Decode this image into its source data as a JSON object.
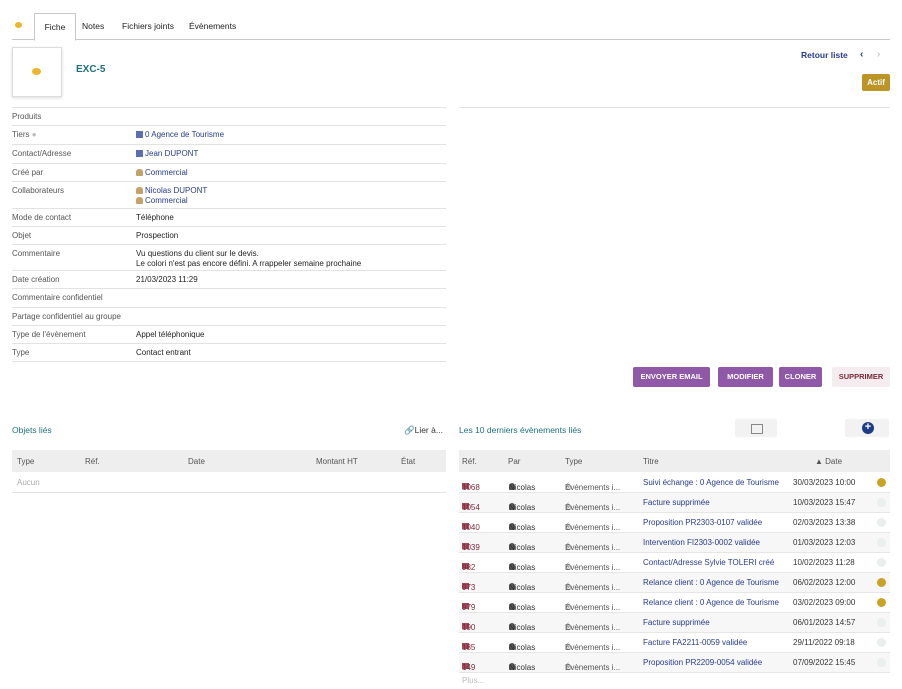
{
  "tabs": [
    "Fiche",
    "Notes",
    "Fichiers joints",
    "Évènements"
  ],
  "header": {
    "ref": "EXC-5",
    "retour": "Retour liste",
    "prev": "‹",
    "next": "›",
    "status": "Actif"
  },
  "fields": [
    {
      "label": "Produits",
      "value": ""
    },
    {
      "label": "Tiers",
      "value": "0 Agence de Tourisme"
    },
    {
      "label": "Contact/Adresse",
      "value": "Jean DUPONT"
    },
    {
      "label": "Créé par",
      "value": "Commercial"
    },
    {
      "label": "Collaborateurs",
      "value": "Nicolas DUPONT",
      "value2": "Commercial"
    },
    {
      "label": "Mode de contact",
      "value": "Téléphone"
    },
    {
      "label": "Objet",
      "value": "Prospection"
    },
    {
      "label": "Commentaire",
      "value": "Vu questions du client sur le devis.",
      "value2": "Le colori n'est pas encore défini. A rrappeler semaine prochaine"
    },
    {
      "label": "Date création",
      "value": "21/03/2023 11:29"
    },
    {
      "label": "Commentaire confidentiel",
      "value": ""
    },
    {
      "label": "Partage confidentiel au groupe",
      "value": ""
    },
    {
      "label": "Type de l'évènement",
      "value": "Appel téléphonique"
    },
    {
      "label": "Type",
      "value": "Contact entrant"
    }
  ],
  "actions": {
    "email": "ENVOYER EMAIL",
    "modify": "MODIFIER",
    "clone": "CLONER",
    "delete": "SUPPRIMER"
  },
  "linked": {
    "title": "Objets liés",
    "link_label": "Lier à...",
    "columns": [
      "Type",
      "Réf.",
      "Date",
      "Montant HT",
      "État"
    ],
    "empty": "Aucun"
  },
  "events": {
    "title": "Les 10 derniers évènements liés",
    "columns": [
      "Réf.",
      "Par",
      "Type",
      "Titre",
      "▲ Date"
    ],
    "rows": [
      {
        "ref": "1068",
        "par": "Nicolas",
        "type": "Évènements i...",
        "title": "Suivi échange : 0 Agence de Tourisme",
        "date": "30/03/2023 10:00",
        "status_color": "#c9a227"
      },
      {
        "ref": "1054",
        "par": "Nicolas",
        "type": "Évènements i...",
        "title": "Facture supprimée",
        "date": "10/03/2023 15:47",
        "status_color": "#e9eeee"
      },
      {
        "ref": "1040",
        "par": "Nicolas",
        "type": "Évènements i...",
        "title": "Proposition PR2303-0107 validée",
        "date": "02/03/2023 13:38",
        "status_color": "#e9eeee"
      },
      {
        "ref": "1039",
        "par": "Nicolas",
        "type": "Évènements i...",
        "title": "Intervention FI2303-0002 validée",
        "date": "01/03/2023 12:03",
        "status_color": "#e9eeee"
      },
      {
        "ref": "982",
        "par": "Nicolas",
        "type": "Évènements i...",
        "title": "Contact/Adresse Sylvie TOLERI créé",
        "date": "10/02/2023 11:28",
        "status_color": "#e9eeee"
      },
      {
        "ref": "973",
        "par": "Nicolas",
        "type": "Évènements i...",
        "title": "Relance client : 0 Agence de Tourisme",
        "date": "06/02/2023 12:00",
        "status_color": "#c9a227"
      },
      {
        "ref": "979",
        "par": "Nicolas",
        "type": "Évènements i...",
        "title": "Relance client : 0 Agence de Tourisme",
        "date": "03/02/2023 09:00",
        "status_color": "#c9a227"
      },
      {
        "ref": "190",
        "par": "Nicolas",
        "type": "Évènements i...",
        "title": "Facture supprimée",
        "date": "06/01/2023 14:57",
        "status_color": "#e9eeee"
      },
      {
        "ref": "185",
        "par": "Nicolas",
        "type": "Évènements i...",
        "title": "Facture FA2211-0059 validée",
        "date": "29/11/2022 09:18",
        "status_color": "#e9eeee"
      },
      {
        "ref": "149",
        "par": "Nicolas",
        "type": "Évènements i...",
        "title": "Proposition PR2209-0054 validée",
        "date": "07/09/2022 15:45",
        "status_color": "#e9eeee"
      }
    ],
    "more": "Plus..."
  }
}
